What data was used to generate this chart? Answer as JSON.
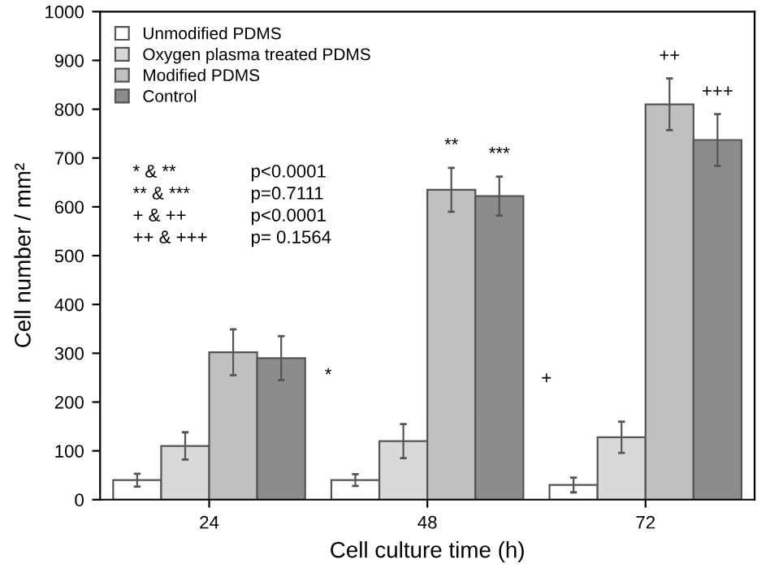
{
  "chart_data": {
    "type": "bar",
    "xlabel": "Cell culture time (h)",
    "ylabel": "Cell number / mm²",
    "categories": [
      "24",
      "48",
      "72"
    ],
    "series": [
      {
        "name": "Unmodified PDMS",
        "color": "#ffffff",
        "values": [
          40,
          40,
          30
        ],
        "errors": [
          13,
          12,
          15
        ]
      },
      {
        "name": "Oxygen plasma treated PDMS",
        "color": "#d9d9d9",
        "values": [
          110,
          120,
          128
        ],
        "errors": [
          28,
          35,
          32
        ]
      },
      {
        "name": "Modified PDMS",
        "color": "#c0c0c0",
        "values": [
          302,
          635,
          810
        ],
        "errors": [
          47,
          45,
          53
        ]
      },
      {
        "name": "Control",
        "color": "#8c8c8c",
        "values": [
          290,
          622,
          737
        ],
        "errors": [
          45,
          40,
          53
        ]
      }
    ],
    "ylim": [
      0,
      1000
    ],
    "yticks": [
      0,
      100,
      200,
      300,
      400,
      500,
      600,
      700,
      800,
      900,
      1000
    ],
    "grid": false,
    "legend": "top left",
    "annotations": [
      "*",
      "**",
      "***",
      "+",
      "++",
      "+++",
      "* & **",
      "p<0.0001",
      "** & ***",
      "p=0.7111",
      "+ & ++",
      "p<0.0001",
      "++ & +++",
      "p= 0.1564"
    ]
  }
}
